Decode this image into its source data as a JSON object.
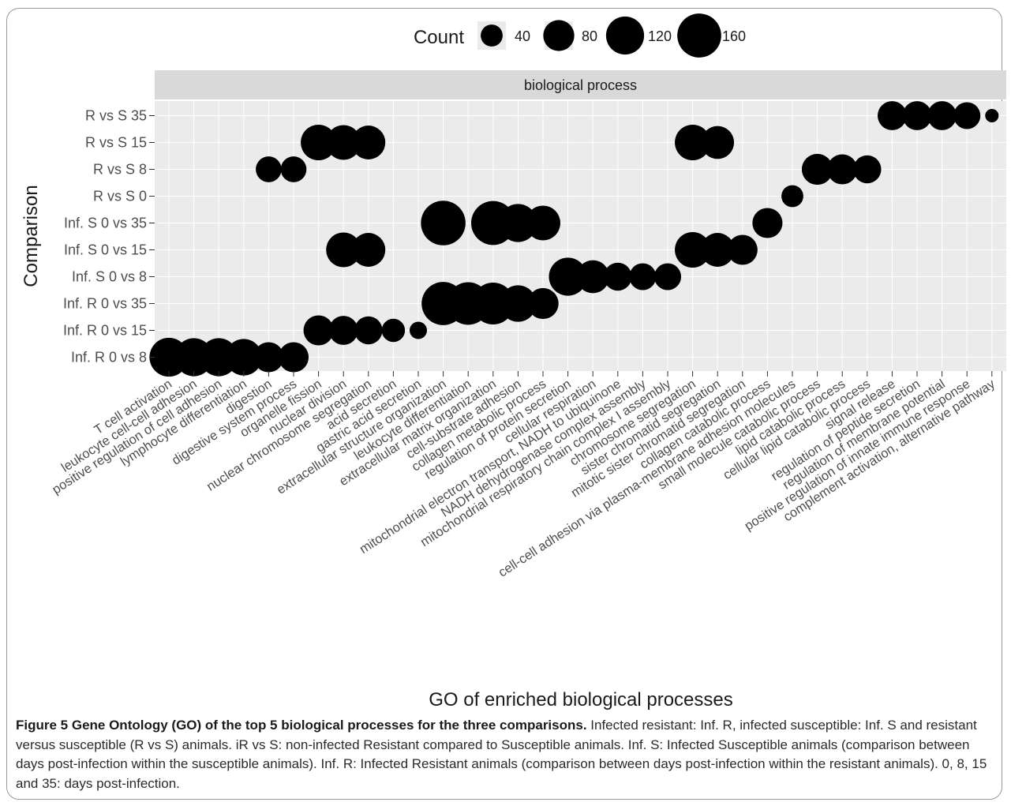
{
  "chart_data": {
    "type": "scatter",
    "title": "",
    "facet_label": "biological process",
    "xlabel": "GO of enriched biological processes",
    "ylabel": "Comparison",
    "legend": {
      "title": "Count",
      "position": "top",
      "keys": [
        40,
        80,
        120,
        160
      ],
      "labels": [
        "40",
        "80",
        "120",
        "160"
      ]
    },
    "grid": true,
    "x_categories": [
      "T cell activation",
      "leukocyte cell-cell adhesion",
      "positive regulation of cell adhesion",
      "lymphocyte differentiation",
      "digestion",
      "digestive system process",
      "organelle fission",
      "nuclear division",
      "nuclear chromosome segregation",
      "acid secretion",
      "gastric acid secretion",
      "extracellular structure organization",
      "leukocyte differentiation",
      "extracellular matrix organization",
      "cell-substrate adhesion",
      "collagen metabolic process",
      "regulation of protein secretion",
      "cellular respiration",
      "mitochondrial electron transport, NADH to ubiquinone",
      "NADH dehydrogenase complex assembly",
      "mitochondrial respiratory chain complex I assembly",
      "chromosome segregation",
      "sister chromatid segregation",
      "mitotic sister chromatid segregation",
      "collagen catabolic process",
      "cell-cell adhesion via plasma-membrane adhesion molecules",
      "small molecule catabolic process",
      "lipid catabolic process",
      "cellular lipid catabolic process",
      "signal release",
      "regulation of peptide secretion",
      "regulation of membrane potential",
      "positive regulation of innate immune response",
      "complement activation, alternative pathway"
    ],
    "y_categories": [
      "Inf. R 0 vs 8",
      "Inf. R 0 vs 15",
      "Inf. R 0 vs 35",
      "Inf. S 0 vs 8",
      "Inf. S 0 vs 15",
      "Inf. S 0 vs 35",
      "R vs S 0",
      "R vs S 8",
      "R vs S 15",
      "R vs S 35"
    ],
    "points": [
      {
        "x": 0,
        "y": 0,
        "count": 125
      },
      {
        "x": 1,
        "y": 0,
        "count": 120
      },
      {
        "x": 2,
        "y": 0,
        "count": 120
      },
      {
        "x": 3,
        "y": 0,
        "count": 110
      },
      {
        "x": 4,
        "y": 0,
        "count": 75
      },
      {
        "x": 5,
        "y": 0,
        "count": 75
      },
      {
        "x": 6,
        "y": 1,
        "count": 75
      },
      {
        "x": 7,
        "y": 1,
        "count": 70
      },
      {
        "x": 8,
        "y": 1,
        "count": 65
      },
      {
        "x": 9,
        "y": 1,
        "count": 45
      },
      {
        "x": 10,
        "y": 1,
        "count": 25
      },
      {
        "x": 11,
        "y": 2,
        "count": 155
      },
      {
        "x": 12,
        "y": 2,
        "count": 150
      },
      {
        "x": 13,
        "y": 2,
        "count": 145
      },
      {
        "x": 14,
        "y": 2,
        "count": 110
      },
      {
        "x": 15,
        "y": 2,
        "count": 80
      },
      {
        "x": 16,
        "y": 3,
        "count": 120
      },
      {
        "x": 17,
        "y": 3,
        "count": 90
      },
      {
        "x": 18,
        "y": 3,
        "count": 65
      },
      {
        "x": 19,
        "y": 3,
        "count": 60
      },
      {
        "x": 20,
        "y": 3,
        "count": 60
      },
      {
        "x": 7,
        "y": 4,
        "count": 100
      },
      {
        "x": 8,
        "y": 4,
        "count": 95
      },
      {
        "x": 21,
        "y": 4,
        "count": 105
      },
      {
        "x": 22,
        "y": 4,
        "count": 95
      },
      {
        "x": 23,
        "y": 4,
        "count": 75
      },
      {
        "x": 11,
        "y": 5,
        "count": 165
      },
      {
        "x": 13,
        "y": 5,
        "count": 160
      },
      {
        "x": 14,
        "y": 5,
        "count": 120
      },
      {
        "x": 15,
        "y": 5,
        "count": 100
      },
      {
        "x": 24,
        "y": 5,
        "count": 75
      },
      {
        "x": 25,
        "y": 6,
        "count": 40
      },
      {
        "x": 4,
        "y": 7,
        "count": 55
      },
      {
        "x": 5,
        "y": 7,
        "count": 55
      },
      {
        "x": 26,
        "y": 7,
        "count": 80
      },
      {
        "x": 27,
        "y": 7,
        "count": 75
      },
      {
        "x": 28,
        "y": 7,
        "count": 65
      },
      {
        "x": 6,
        "y": 8,
        "count": 105
      },
      {
        "x": 7,
        "y": 8,
        "count": 100
      },
      {
        "x": 8,
        "y": 8,
        "count": 95
      },
      {
        "x": 21,
        "y": 8,
        "count": 105
      },
      {
        "x": 22,
        "y": 8,
        "count": 90
      },
      {
        "x": 29,
        "y": 9,
        "count": 70
      },
      {
        "x": 30,
        "y": 9,
        "count": 70
      },
      {
        "x": 31,
        "y": 9,
        "count": 70
      },
      {
        "x": 32,
        "y": 9,
        "count": 60
      },
      {
        "x": 33,
        "y": 9,
        "count": 15
      }
    ]
  },
  "caption": {
    "head": "Figure 5  Gene Ontology (GO) of the top 5 biological processes for the three comparisons.",
    "body": " Infected resistant: Inf. R, infected susceptible: Inf. S and resistant versus susceptible (R vs S) animals. iR vs S: non-infected Resistant compared to Susceptible animals. Inf. S: Infected Susceptible animals (comparison between days post-infection within the susceptible animals). Inf. R: Infected Resistant animals (comparison between days post-infection within the resistant animals). 0, 8, 15 and 35: days post-infection."
  },
  "colors": {
    "panel": "#ebebeb",
    "strip": "#d9d9d9",
    "grid": "#ffffff",
    "point": "#000000",
    "text": "#4d4d4d",
    "title_text": "#1a1a1a"
  }
}
